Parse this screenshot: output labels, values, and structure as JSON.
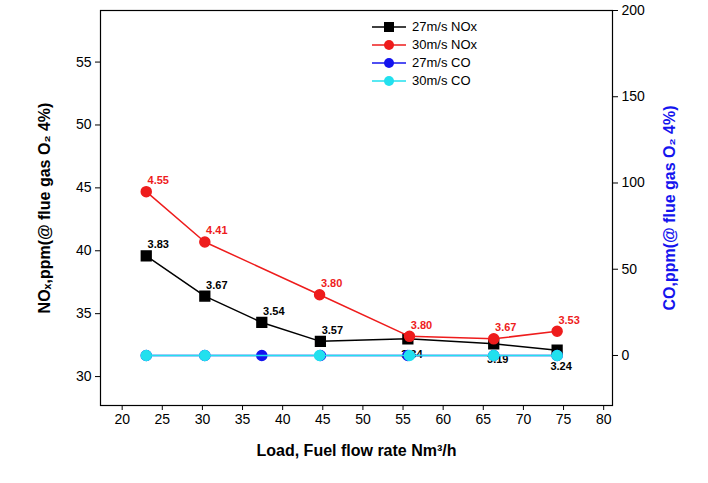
{
  "chart_data": {
    "type": "line",
    "x_label": "Load, Fuel flow rate Nm³/h",
    "y_label": "NOₓ,ppm(@ flue gas O₂ 4%)",
    "y2_label": "CO,ppm(@ flue gas O₂ 4%)",
    "xlim": [
      17.3,
      81.1
    ],
    "xticks": [
      20,
      25,
      30,
      35,
      40,
      45,
      50,
      55,
      60,
      65,
      70,
      75,
      80
    ],
    "ylim": [
      27.7,
      59.1
    ],
    "yticks": [
      30,
      35,
      40,
      45,
      50,
      55
    ],
    "y2lim": [
      -29,
      200
    ],
    "y2ticks": [
      0,
      50,
      100,
      150,
      200
    ],
    "legend": "top-right",
    "series": [
      {
        "name": "27m/s NOx",
        "color": "#000000",
        "marker": "square",
        "x": [
          23,
          30.3,
          37.4,
          44.7,
          55.6,
          66.3,
          74.2
        ],
        "values": [
          39.6,
          36.4,
          34.3,
          32.8,
          33.0,
          32.6,
          32.1
        ],
        "point_labels": [
          3.83,
          3.67,
          3.54,
          3.57,
          3.34,
          3.19,
          3.24
        ]
      },
      {
        "name": "30m/s NOx",
        "color": "#ee1c1c",
        "marker": "circle",
        "x": [
          23,
          30.3,
          44.6,
          55.8,
          66.3,
          74.2
        ],
        "values": [
          44.7,
          40.7,
          36.5,
          33.2,
          33.0,
          33.6
        ],
        "point_labels": [
          4.55,
          4.41,
          3.8,
          3.8,
          3.67,
          3.53
        ]
      },
      {
        "name": "27m/s CO",
        "color": "#1414ee",
        "marker": "circle",
        "axis": "y2",
        "x": [
          23,
          30.3,
          37.4,
          44.7,
          55.6,
          66.3,
          74.2
        ],
        "values": [
          0,
          0,
          0,
          0,
          0,
          0,
          0
        ]
      },
      {
        "name": "30m/s CO",
        "color": "#22e0ee",
        "marker": "circle",
        "axis": "y2",
        "x": [
          23,
          30.3,
          44.6,
          55.8,
          66.3,
          74.2
        ],
        "values": [
          0,
          0,
          0,
          0,
          0,
          0
        ]
      }
    ]
  }
}
